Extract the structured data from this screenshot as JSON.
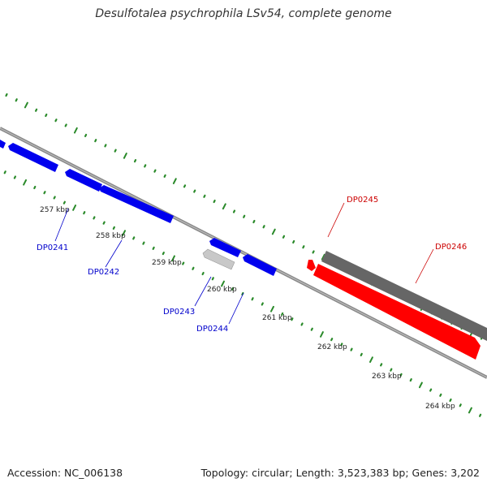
{
  "header": {
    "title": "Desulfotalea psychrophila LSv54, complete genome"
  },
  "footer": {
    "accession": "Accession: NC_006138",
    "summary": "Topology: circular; Length: 3,523,383 bp; Genes: 3,202"
  },
  "colors": {
    "forward_gene": "#ff0000",
    "forward_gene_alt": "#606060",
    "reverse_gene": "#0000ee",
    "reverse_gene_alt": "#c0c0c0",
    "ticks": "#2a8a2a",
    "backbone": "#888888"
  },
  "scale_ticks": [
    "257 kbp",
    "258 kbp",
    "259 kbp",
    "260 kbp",
    "261 kbp",
    "262 kbp",
    "263 kbp",
    "264 kbp"
  ],
  "gene_labels": {
    "reverse": [
      "DP0241",
      "DP0242",
      "DP0243",
      "DP0244"
    ],
    "forward": [
      "DP0245",
      "DP0246"
    ]
  }
}
